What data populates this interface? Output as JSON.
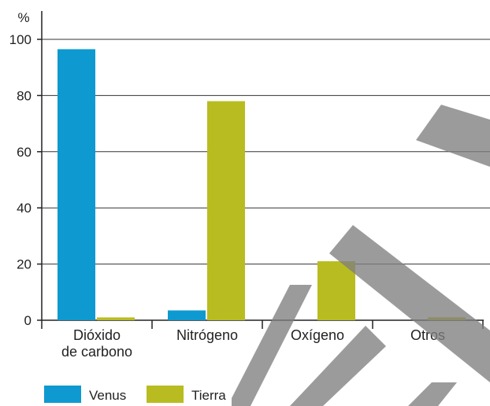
{
  "chart_data": {
    "type": "bar",
    "ylabel": "%",
    "ylim": [
      0,
      100
    ],
    "yticks": [
      0,
      20,
      40,
      60,
      80,
      100
    ],
    "grid": true,
    "legend_position": "bottom-left",
    "categories": [
      [
        "Dióxido",
        "de carbono"
      ],
      [
        "Nitrógeno"
      ],
      [
        "Oxígeno"
      ],
      [
        "Otros"
      ]
    ],
    "series": [
      {
        "name": "Venus",
        "color": "#0e9ad0",
        "values": [
          96.5,
          3.5,
          0,
          0
        ]
      },
      {
        "name": "Tierra",
        "color": "#b9bc20",
        "values": [
          1,
          78,
          21,
          1
        ]
      }
    ]
  }
}
